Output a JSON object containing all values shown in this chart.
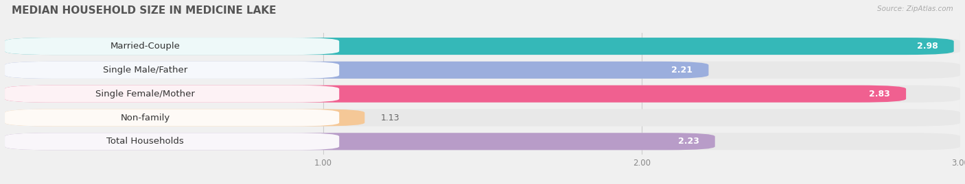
{
  "title": "MEDIAN HOUSEHOLD SIZE IN MEDICINE LAKE",
  "source": "Source: ZipAtlas.com",
  "categories": [
    "Married-Couple",
    "Single Male/Father",
    "Single Female/Mother",
    "Non-family",
    "Total Households"
  ],
  "values": [
    2.98,
    2.21,
    2.83,
    1.13,
    2.23
  ],
  "colors": [
    "#35b8b8",
    "#9baedd",
    "#f06090",
    "#f5c897",
    "#b89cc8"
  ],
  "xmin": 0.0,
  "xmax": 3.0,
  "xticks": [
    1.0,
    2.0,
    3.0
  ],
  "bar_height": 0.72,
  "background_color": "#f0f0f0",
  "bar_bg_color": "#e8e8e8",
  "label_fontsize": 9.5,
  "value_fontsize": 9,
  "title_fontsize": 11
}
